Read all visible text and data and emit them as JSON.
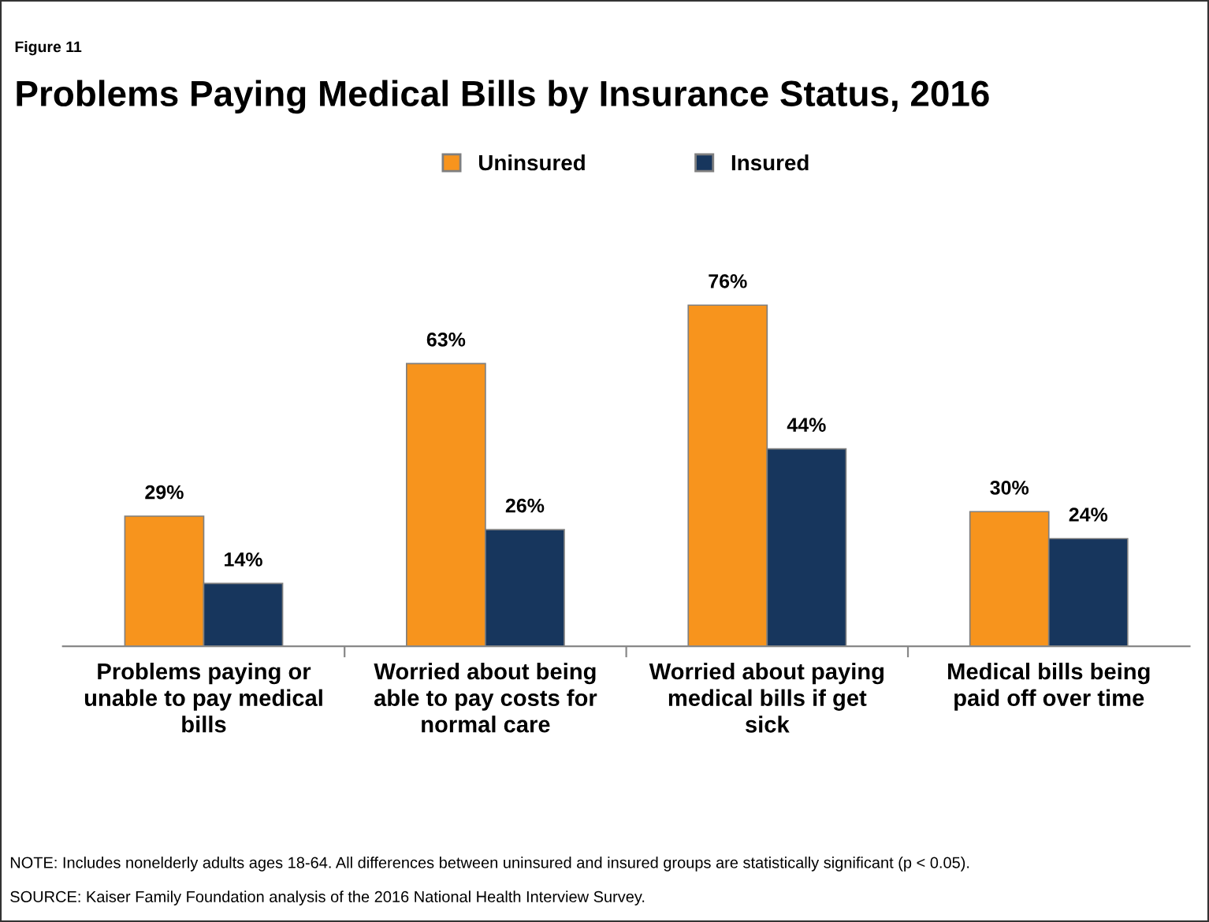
{
  "chart_data": {
    "type": "bar",
    "title": "Problems Paying Medical Bills by Insurance Status, 2016",
    "categories": [
      "Problems paying or unable to pay medical bills",
      "Worried about being able to pay costs for normal care",
      "Worried about paying medical bills if get sick",
      "Medical bills being paid off over time"
    ],
    "series": [
      {
        "name": "Uninsured",
        "color": "#f7941d",
        "values": [
          29,
          63,
          76,
          30
        ],
        "value_labels": [
          "29%",
          "63%",
          "76%",
          "30%"
        ]
      },
      {
        "name": "Insured",
        "color": "#17365d",
        "values": [
          14,
          26,
          44,
          24
        ],
        "value_labels": [
          "14%",
          "26%",
          "44%",
          "24%"
        ]
      }
    ],
    "legend": "top",
    "grid": false,
    "annotations": [
      "Figure 11",
      "NOTE: Includes nonelderly adults ages 18-64. All differences between uninsured and insured groups are statistically significant (p < 0.05).",
      "SOURCE: Kaiser Family Foundation analysis of the 2016 National Health Interview Survey."
    ]
  }
}
